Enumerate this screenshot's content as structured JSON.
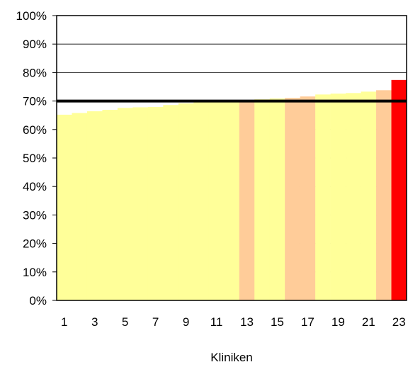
{
  "chart_data": {
    "type": "bar",
    "title": "",
    "xlabel": "Kliniken",
    "ylabel": "",
    "x": [
      1,
      2,
      3,
      4,
      5,
      6,
      7,
      8,
      9,
      10,
      11,
      12,
      13,
      14,
      15,
      16,
      17,
      18,
      19,
      20,
      21,
      22,
      23
    ],
    "values": [
      0.652,
      0.658,
      0.664,
      0.669,
      0.676,
      0.678,
      0.679,
      0.686,
      0.692,
      0.697,
      0.7,
      0.701,
      0.702,
      0.706,
      0.709,
      0.711,
      0.716,
      0.723,
      0.726,
      0.728,
      0.733,
      0.738,
      0.774
    ],
    "bar_colors": [
      "#ffff99",
      "#ffff99",
      "#ffff99",
      "#ffff99",
      "#ffff99",
      "#ffff99",
      "#ffff99",
      "#ffff99",
      "#ffff99",
      "#ffff99",
      "#ffff99",
      "#ffff99",
      "#ffcc99",
      "#ffff99",
      "#ffff99",
      "#ffcc99",
      "#ffcc99",
      "#ffff99",
      "#ffff99",
      "#ffff99",
      "#ffff99",
      "#ffcc99",
      "#ff0000"
    ],
    "reference_line": {
      "value": 0.7,
      "color": "#000000"
    },
    "ylim": [
      0,
      1
    ],
    "yticks": [
      0,
      0.1,
      0.2,
      0.3,
      0.4,
      0.5,
      0.6,
      0.7,
      0.8,
      0.9,
      1.0
    ],
    "ytick_labels": [
      "0%",
      "10%",
      "20%",
      "30%",
      "40%",
      "50%",
      "60%",
      "70%",
      "80%",
      "90%",
      "100%"
    ],
    "xtick_labels": [
      "1",
      "3",
      "5",
      "7",
      "9",
      "11",
      "13",
      "15",
      "17",
      "19",
      "21",
      "23"
    ],
    "grid": true,
    "legend": "none"
  }
}
